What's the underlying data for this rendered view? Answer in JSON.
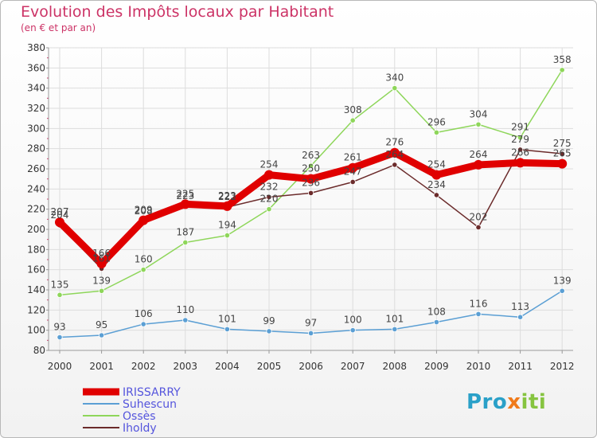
{
  "title": "Evolution des Impôts locaux par Habitant",
  "subtitle": "(en € et par an)",
  "logo": {
    "part1": "Pro",
    "part2": "x",
    "part3": "iti"
  },
  "colors": {
    "title": "#cc3366",
    "irissarry": "#e00000",
    "suhescun": "#5b9fd4",
    "osses": "#8ed65a",
    "iholdy": "#6b2b2b",
    "grid": "#dddddd",
    "legend_text": "#5555dd"
  },
  "chart_data": {
    "type": "line",
    "title": "Evolution des Impôts locaux par Habitant",
    "subtitle": "(en € et par an)",
    "xlabel": "",
    "ylabel": "",
    "x": [
      "2000",
      "2001",
      "2002",
      "2003",
      "2004",
      "2005",
      "2006",
      "2007",
      "2008",
      "2009",
      "2010",
      "2011",
      "2012"
    ],
    "ylim": [
      80,
      380
    ],
    "yticks": [
      80,
      100,
      120,
      140,
      160,
      180,
      200,
      220,
      240,
      260,
      280,
      300,
      320,
      340,
      360,
      380
    ],
    "grid": true,
    "legend_position": "bottom-left",
    "series": [
      {
        "name": "IRISSARRY",
        "color": "#e00000",
        "values": [
          207,
          166,
          209,
          225,
          223,
          254,
          250,
          261,
          276,
          254,
          264,
          266,
          265
        ],
        "labels": [
          "207",
          "166",
          "209",
          "225",
          "223",
          "254",
          "250",
          "261",
          "276",
          "254",
          "264",
          "266",
          "265"
        ]
      },
      {
        "name": "Suhescun",
        "color": "#5b9fd4",
        "values": [
          93,
          95,
          106,
          110,
          101,
          99,
          97,
          100,
          101,
          108,
          116,
          113,
          139
        ],
        "labels": [
          "93",
          "95",
          "106",
          "110",
          "101",
          "99",
          "97",
          "100",
          "101",
          "108",
          "116",
          "113",
          "139"
        ]
      },
      {
        "name": "Ossès",
        "color": "#8ed65a",
        "values": [
          135,
          139,
          160,
          187,
          194,
          220,
          263,
          308,
          340,
          296,
          304,
          291,
          358
        ],
        "labels": [
          "135",
          "139",
          "160",
          "187",
          "194",
          "220",
          "263",
          "308",
          "340",
          "296",
          "304",
          "291",
          "358"
        ]
      },
      {
        "name": "Iholdy",
        "color": "#6b2b2b",
        "values": [
          204,
          161,
          208,
          223,
          222,
          232,
          236,
          247,
          264,
          234,
          202,
          279,
          275
        ],
        "labels": [
          "204",
          "161",
          "208",
          "223",
          "222",
          "232",
          "236",
          "247",
          "264",
          "234",
          "202",
          "279",
          "275"
        ]
      }
    ]
  }
}
